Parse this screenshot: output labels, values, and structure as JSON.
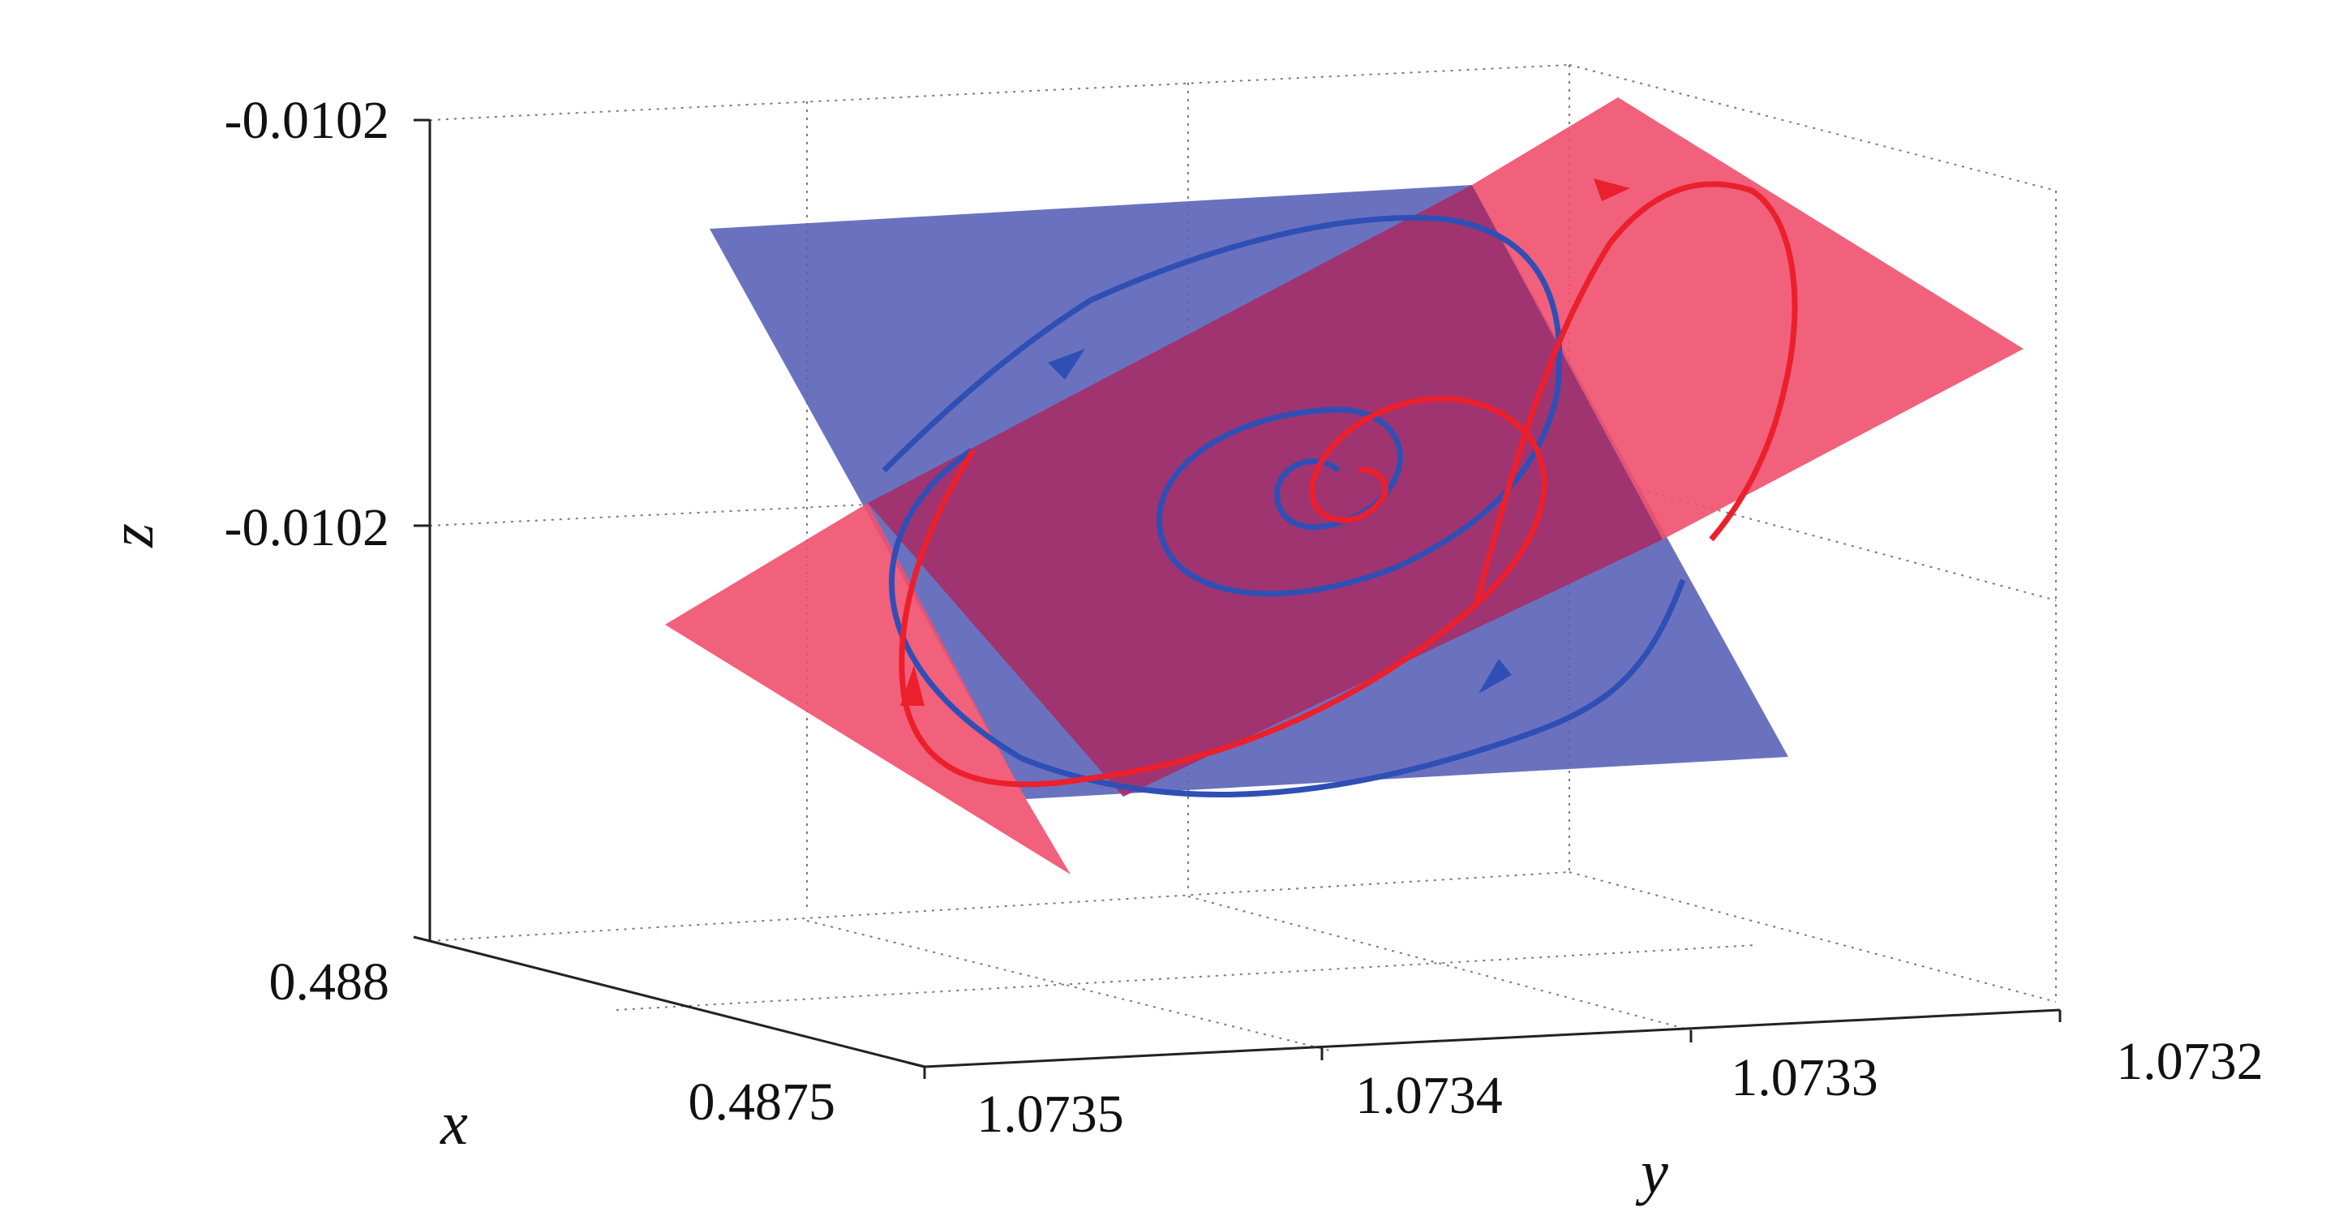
{
  "chart_data": {
    "type": "3d-line",
    "title": "",
    "xlabel": "x",
    "ylabel": "y",
    "zlabel": "z",
    "x_ticks": [
      "0.488",
      "0.4875"
    ],
    "y_ticks": [
      "1.0735",
      "1.0734",
      "1.0733",
      "1.0732"
    ],
    "z_ticks": [
      "-0.0102",
      "-0.0102"
    ],
    "grid": true,
    "surfaces": [
      {
        "color": "#5a63b8",
        "opacity": 0.88
      },
      {
        "color": "#f0506e",
        "opacity": 0.9
      }
    ],
    "series": [
      {
        "color": "#2f4fb5",
        "arrows": true
      },
      {
        "color": "#ec1f2d",
        "arrows": true
      }
    ]
  }
}
